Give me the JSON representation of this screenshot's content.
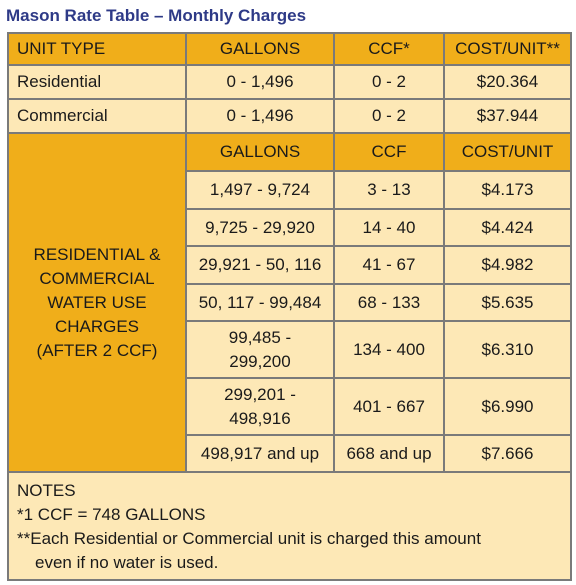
{
  "title": "Mason Rate Table – Monthly Charges",
  "header": {
    "unit_type": "UNIT TYPE",
    "gallons": "GALLONS",
    "ccf": "CCF*",
    "cost": "COST/UNIT**"
  },
  "base_rows": [
    {
      "type": "Residential",
      "gallons": "0 - 1,496",
      "ccf": "0 - 2",
      "cost": "$20.364"
    },
    {
      "type": "Commercial",
      "gallons": "0 - 1,496",
      "ccf": "0 - 2",
      "cost": "$37.944"
    }
  ],
  "usage_label": [
    "RESIDENTIAL &",
    "COMMERCIAL",
    "WATER USE",
    "CHARGES",
    "(AFTER 2 CCF)"
  ],
  "sub_header": {
    "gallons": "GALLONS",
    "ccf": "CCF",
    "cost": "COST/UNIT"
  },
  "tiers": [
    {
      "gallons": [
        "1,497 - 9,724"
      ],
      "ccf": "3 - 13",
      "cost": "$4.173"
    },
    {
      "gallons": [
        "9,725 - 29,920"
      ],
      "ccf": "14 - 40",
      "cost": "$4.424"
    },
    {
      "gallons": [
        "29,921 - 50, 116"
      ],
      "ccf": "41 - 67",
      "cost": "$4.982"
    },
    {
      "gallons": [
        "50, 117 - 99,484"
      ],
      "ccf": "68 - 133",
      "cost": "$5.635"
    },
    {
      "gallons": [
        "99,485 -",
        "299,200"
      ],
      "ccf": "134 - 400",
      "cost": "$6.310"
    },
    {
      "gallons": [
        "299,201 -",
        "498,916"
      ],
      "ccf": "401 - 667",
      "cost": "$6.990"
    },
    {
      "gallons": [
        "498,917 and up"
      ],
      "ccf": "668 and up",
      "cost": "$7.666"
    }
  ],
  "notes": {
    "heading": "NOTES",
    "line1": "*1 CCF = 748 GALLONS",
    "line2": "**Each Residential or Commercial unit is charged this amount",
    "line3": "even if no water is used."
  },
  "colors": {
    "header_gold": "#f0ae1a",
    "cell_cream": "#fde8b6",
    "title_blue": "#2e3a87",
    "grid_gray": "#7a7a7a"
  }
}
